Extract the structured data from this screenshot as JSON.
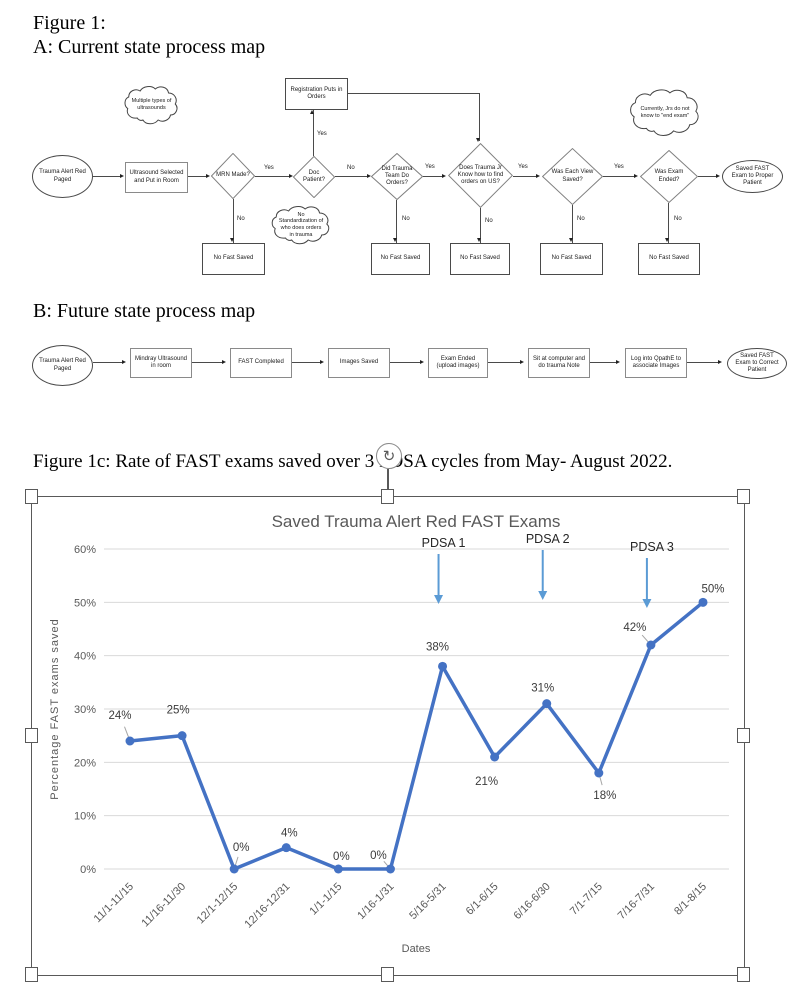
{
  "page": {
    "figure1_label": "Figure 1:",
    "sectionA_title": "A: Current state process map",
    "sectionB_title": "B: Future state process map",
    "figure1c_caption": "Figure 1c: Rate of FAST exams saved over 3 PDSA cycles from May- August 2022.",
    "rotate_icon_glyph": "↻"
  },
  "flowchartA": {
    "clouds": {
      "multiple": "Multiple types of ultrasounds",
      "no_standardization": "No Standardization of who does orders in trauma",
      "currently": "Currently, Jrs do not know to \"end exam\""
    },
    "nodes": {
      "start": "Trauma Alert Red Paged",
      "ultrasound": "Ultrasound Selected and Put in Room",
      "registration": "Registration Puts in Orders",
      "mrn": "MRN Made?",
      "doc": "Doc Patient?",
      "did_trauma": "Did Trauma Team Do Orders?",
      "does_jr": "Does Trauma Jr Know how to find orders on US?",
      "each_view": "Was Each View Saved?",
      "exam_ended": "Was Exam Ended?",
      "end": "Saved FAST Exam to Proper Patient",
      "no_fast": "No Fast Saved"
    },
    "labels": {
      "yes": "Yes",
      "no": "No"
    }
  },
  "flowchartB": {
    "start": "Trauma Alert Red Paged",
    "step1": "Mindray Ultrasound in room",
    "step2": "FAST Completed",
    "step3": "Images Saved",
    "step4": "Exam Ended (upload images)",
    "step5": "Sit at computer and do trauma Note",
    "step6": "Log into QpathE to associate Images",
    "end": "Saved FAST Exam to Correct Patient"
  },
  "chart_data": {
    "type": "line",
    "title": "Saved Trauma Alert Red FAST Exams",
    "categories": [
      "11/1-11/15",
      "11/16-11/30",
      "12/1-12/15",
      "12/16-12/31",
      "1/1-1/15",
      "1/16-1/31",
      "5/16-5/31",
      "6/1-6/15",
      "6/16-6/30",
      "7/1-7/15",
      "7/16-7/31",
      "8/1-8/15"
    ],
    "values": [
      24,
      25,
      0,
      4,
      0,
      0,
      38,
      21,
      31,
      18,
      42,
      50
    ],
    "data_labels": [
      "24%",
      "25%",
      "0%",
      "4%",
      "0%",
      "0%",
      "38%",
      "21%",
      "31%",
      "18%",
      "42%",
      "50%"
    ],
    "xlabel": "Dates",
    "ylabel": "Percentage FAST exams saved",
    "ylim": [
      0,
      60
    ],
    "ytick_labels": [
      "0%",
      "10%",
      "20%",
      "30%",
      "40%",
      "50%",
      "60%"
    ],
    "grid": true,
    "legend": "none",
    "annotations": [
      {
        "label": "PDSA 1",
        "x_index": 6
      },
      {
        "label": "PDSA 2",
        "x_index": 8
      },
      {
        "label": "PDSA 3",
        "x_index": 10
      }
    ],
    "line_color": "#4472C4",
    "marker_color": "#4472C4",
    "arrow_color": "#5B9BD5",
    "grid_color": "#D9D9D9",
    "text_color": "#595959",
    "data_label_color": "#3b3b3b"
  }
}
